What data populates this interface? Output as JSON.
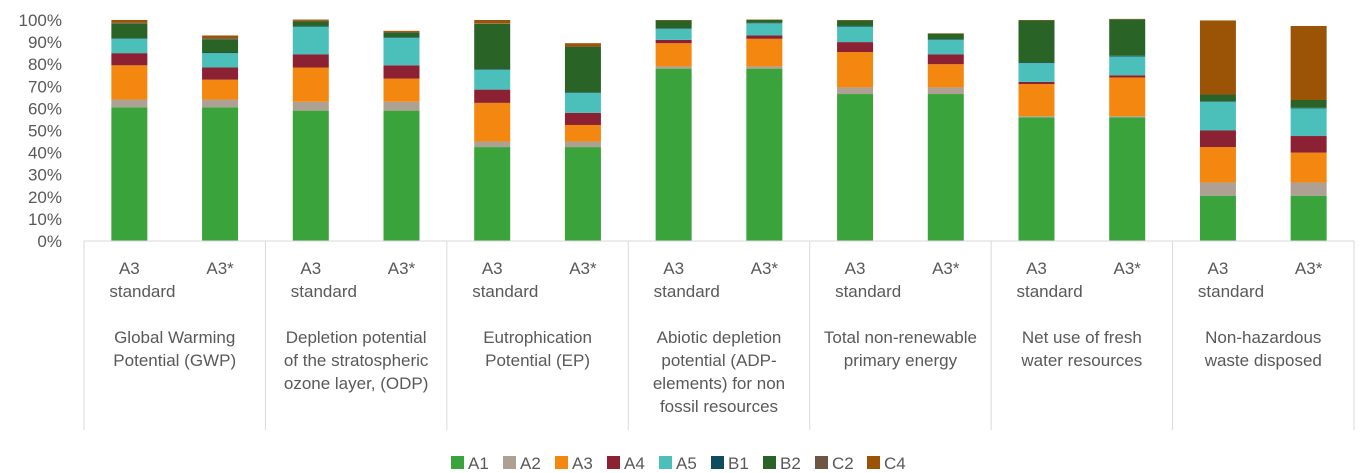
{
  "chart_data": {
    "type": "bar",
    "stacked": true,
    "title": "",
    "xlabel": "",
    "ylabel": "",
    "ylim": [
      0,
      100
    ],
    "y_ticks": [
      "0%",
      "10%",
      "20%",
      "30%",
      "40%",
      "50%",
      "60%",
      "70%",
      "80%",
      "90%",
      "100%"
    ],
    "grid": false,
    "legend_position": "bottom",
    "groups": [
      {
        "label": "Global Warming Potential (GWP)",
        "label_lines": [
          "Global Warming",
          "Potential (GWP)"
        ]
      },
      {
        "label": "Depletion potential of the stratospheric ozone layer, (ODP)",
        "label_lines": [
          "Depletion potential",
          "of the stratospheric",
          "ozone layer,  (ODP)"
        ]
      },
      {
        "label": "Eutrophication Potential (EP)",
        "label_lines": [
          "Eutrophication",
          "Potential (EP)"
        ]
      },
      {
        "label": "Abiotic depletion potential (ADP-elements) for non fossil resources",
        "label_lines": [
          "Abiotic depletion",
          "potential (ADP-",
          "elements) for non",
          "fossil resources"
        ]
      },
      {
        "label": "Total non-renewable primary energy",
        "label_lines": [
          "Total non-renewable",
          "primary energy"
        ]
      },
      {
        "label": "Net use of fresh water resources",
        "label_lines": [
          "Net use of fresh",
          "water resources"
        ]
      },
      {
        "label": "Non-hazardous waste disposed",
        "label_lines": [
          "Non-hazardous",
          "waste disposed"
        ]
      }
    ],
    "bar_labels": [
      {
        "label": "A3 standard",
        "lines": [
          "A3",
          "standard"
        ]
      },
      {
        "label": "A3*",
        "lines": [
          "A3*"
        ]
      }
    ],
    "categories": [
      "A3 standard | Global Warming Potential (GWP)",
      "A3* | Global Warming Potential (GWP)",
      "A3 standard | Depletion potential of the stratospheric ozone layer, (ODP)",
      "A3* | Depletion potential of the stratospheric ozone layer, (ODP)",
      "A3 standard | Eutrophication Potential (EP)",
      "A3* | Eutrophication Potential (EP)",
      "A3 standard | Abiotic depletion potential (ADP-elements) for non fossil resources",
      "A3* | Abiotic depletion potential (ADP-elements) for non fossil resources",
      "A3 standard | Total non-renewable primary energy",
      "A3* | Total non-renewable primary energy",
      "A3 standard | Net use of fresh water resources",
      "A3* | Net use of fresh water resources",
      "A3 standard | Non-hazardous waste disposed",
      "A3* | Non-hazardous waste disposed"
    ],
    "series": [
      {
        "name": "A1",
        "color": "#3BA33B",
        "values": [
          60.5,
          60.5,
          59,
          59,
          42.5,
          42.5,
          78,
          78,
          66.5,
          66.5,
          56,
          56,
          20.5,
          20.5
        ]
      },
      {
        "name": "A2",
        "color": "#AFA094",
        "values": [
          3.5,
          3.5,
          4,
          4,
          2.5,
          2.5,
          1,
          1,
          3,
          3,
          0.5,
          0.5,
          6,
          6
        ]
      },
      {
        "name": "A3",
        "color": "#F4870F",
        "values": [
          15.5,
          9,
          15.5,
          10.5,
          17.5,
          7.5,
          10.5,
          12.5,
          16,
          10.5,
          14.5,
          17.5,
          16,
          13.5
        ]
      },
      {
        "name": "A4",
        "color": "#8B2132",
        "values": [
          5.5,
          5.5,
          6,
          6,
          6,
          5.5,
          1.5,
          1.5,
          4.5,
          4.5,
          1,
          1,
          7.5,
          7.5
        ]
      },
      {
        "name": "A5",
        "color": "#4BBFBA",
        "values": [
          6.5,
          6.5,
          12.5,
          12.5,
          9,
          9,
          5,
          5.5,
          7,
          6.5,
          8.5,
          8.5,
          13,
          12.5
        ]
      },
      {
        "name": "B1",
        "color": "#0E4C5E",
        "values": [
          0.3,
          0.3,
          0.3,
          0.3,
          0.3,
          0.3,
          0.3,
          0.3,
          0.3,
          0.3,
          0.3,
          0.3,
          0.3,
          0.3
        ]
      },
      {
        "name": "B2",
        "color": "#2A6326",
        "values": [
          6.5,
          6,
          2,
          2,
          20.5,
          20.5,
          3.5,
          1.2,
          2.5,
          2.5,
          19,
          16.5,
          3,
          3.5
        ]
      },
      {
        "name": "C2",
        "color": "#6E5644",
        "values": [
          0.5,
          0.5,
          0.3,
          0.3,
          0.2,
          0.2,
          0,
          0,
          0,
          0,
          0,
          0,
          0,
          0
        ]
      },
      {
        "name": "C4",
        "color": "#9B5405",
        "values": [
          1.2,
          1.2,
          0.6,
          0.5,
          1.5,
          1.5,
          0.2,
          0.2,
          0.2,
          0.2,
          0.2,
          0.2,
          33.5,
          33.5
        ]
      }
    ]
  }
}
